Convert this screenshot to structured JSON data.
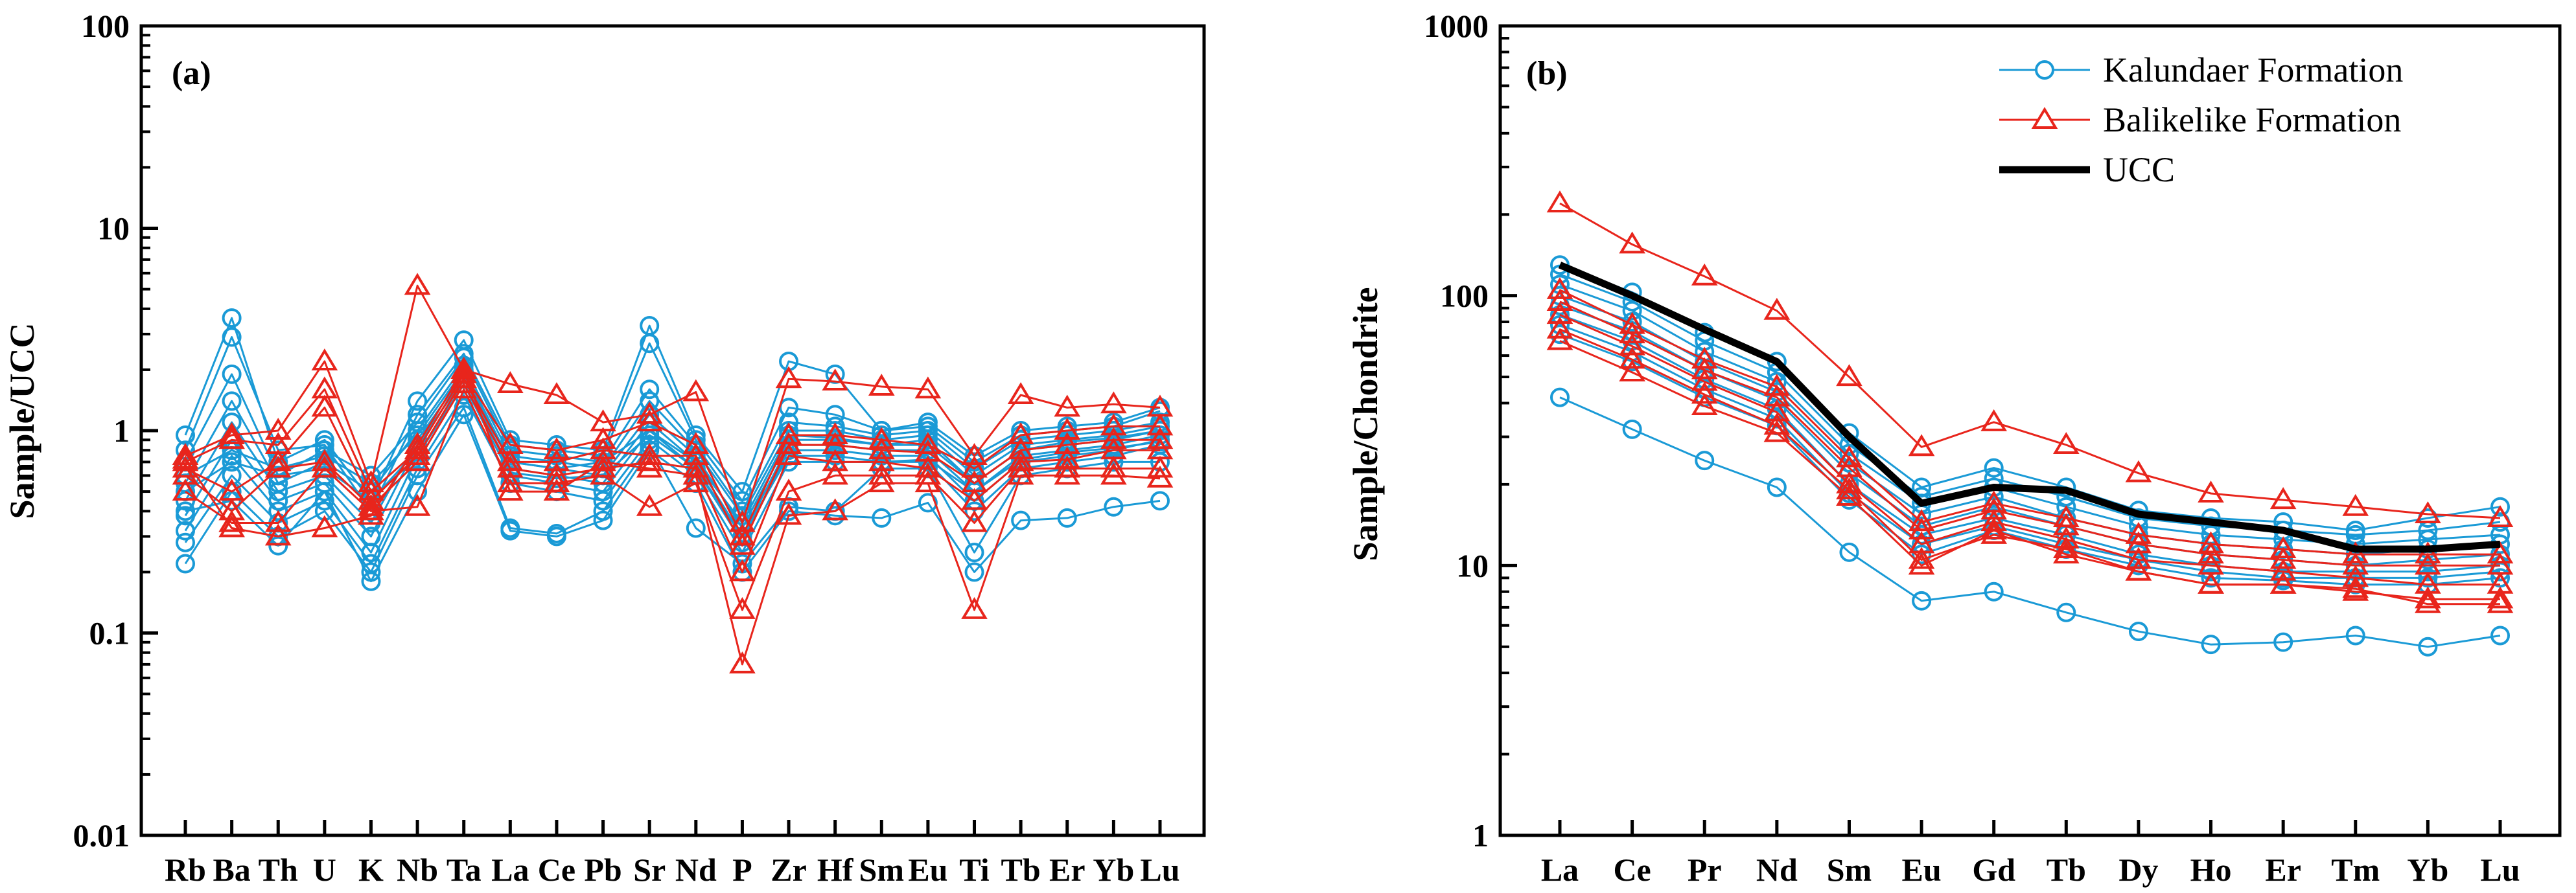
{
  "colors": {
    "kalundaer": "#1a9ad6",
    "balikelike": "#e8251c",
    "ucc": "#000000"
  },
  "chart_data": [
    {
      "type": "line",
      "panel_label": "(a)",
      "ylabel": "Sample/UCC",
      "xlabel": "",
      "yscale": "log",
      "ylim": [
        0.01,
        100
      ],
      "yticks": [
        "0.01",
        "0.1",
        "1",
        "10",
        "100"
      ],
      "categories": [
        "Rb",
        "Ba",
        "Th",
        "U",
        "K",
        "Nb",
        "Ta",
        "La",
        "Ce",
        "Pb",
        "Sr",
        "Nd",
        "P",
        "Zr",
        "Hf",
        "Sm",
        "Eu",
        "Ti",
        "Tb",
        "Er",
        "Yb",
        "Lu"
      ],
      "series": [
        {
          "name": "Kalundaer Formation",
          "values": [
            0.95,
            3.6,
            0.7,
            0.9,
            0.45,
            1.4,
            2.8,
            0.9,
            0.85,
            0.8,
            3.3,
            0.95,
            0.5,
            2.2,
            1.9,
            1.0,
            1.1,
            0.75,
            1.0,
            1.05,
            1.1,
            1.3
          ]
        },
        {
          "name": "Kalundaer Formation",
          "values": [
            0.8,
            2.9,
            0.8,
            0.85,
            0.4,
            1.2,
            2.4,
            0.85,
            0.8,
            0.75,
            2.7,
            0.9,
            0.45,
            1.3,
            1.2,
            1.0,
            1.05,
            0.7,
            0.95,
            1.0,
            1.05,
            1.25
          ]
        },
        {
          "name": "Kalundaer Formation",
          "values": [
            0.7,
            1.9,
            0.6,
            0.8,
            0.6,
            1.1,
            2.3,
            0.8,
            0.75,
            0.7,
            1.6,
            0.85,
            0.4,
            1.1,
            1.05,
            0.95,
            1.0,
            0.65,
            0.9,
            0.95,
            1.0,
            1.1
          ]
        },
        {
          "name": "Kalundaer Formation",
          "values": [
            0.55,
            1.4,
            0.55,
            0.7,
            0.5,
            1.0,
            2.1,
            0.75,
            0.7,
            0.65,
            1.4,
            0.8,
            0.38,
            1.0,
            1.0,
            0.9,
            0.95,
            0.6,
            0.85,
            0.9,
            0.95,
            1.05
          ]
        },
        {
          "name": "Kalundaer Formation",
          "values": [
            0.45,
            1.1,
            0.5,
            0.6,
            0.35,
            0.9,
            1.9,
            0.7,
            0.65,
            0.6,
            1.2,
            0.75,
            0.33,
            0.9,
            0.9,
            0.85,
            0.85,
            0.55,
            0.8,
            0.85,
            0.9,
            1.0
          ]
        },
        {
          "name": "Kalundaer Formation",
          "values": [
            0.38,
            0.9,
            0.45,
            0.55,
            0.3,
            0.85,
            1.8,
            0.65,
            0.6,
            0.55,
            1.1,
            0.7,
            0.3,
            0.85,
            0.85,
            0.8,
            0.8,
            0.5,
            0.75,
            0.8,
            0.85,
            0.95
          ]
        },
        {
          "name": "Kalundaer Formation",
          "values": [
            0.32,
            0.75,
            0.4,
            0.5,
            0.25,
            0.75,
            1.7,
            0.6,
            0.55,
            0.5,
            1.0,
            0.65,
            0.28,
            0.8,
            0.8,
            0.75,
            0.75,
            0.45,
            0.7,
            0.75,
            0.8,
            0.9
          ]
        },
        {
          "name": "Kalundaer Formation",
          "values": [
            0.28,
            0.6,
            0.35,
            0.45,
            0.22,
            0.65,
            1.5,
            0.55,
            0.5,
            0.45,
            0.9,
            0.6,
            0.25,
            0.7,
            0.7,
            0.7,
            0.7,
            0.4,
            0.65,
            0.7,
            0.75,
            0.85
          ]
        },
        {
          "name": "Kalundaer Formation",
          "values": [
            0.22,
            0.5,
            0.3,
            0.4,
            0.2,
            0.6,
            1.3,
            0.33,
            0.31,
            0.4,
            0.85,
            0.33,
            0.22,
            0.42,
            0.4,
            0.65,
            0.65,
            0.25,
            0.6,
            0.65,
            0.7,
            0.7
          ]
        },
        {
          "name": "Kalundaer Formation",
          "values": [
            0.4,
            0.45,
            0.27,
            0.5,
            0.18,
            0.5,
            1.2,
            0.32,
            0.3,
            0.36,
            0.8,
            0.55,
            0.2,
            0.4,
            0.38,
            0.37,
            0.44,
            0.2,
            0.36,
            0.37,
            0.42,
            0.45
          ]
        },
        {
          "name": "Kalundaer Formation",
          "values": [
            0.6,
            0.8,
            0.65,
            0.75,
            0.55,
            0.95,
            2.0,
            0.7,
            0.65,
            0.7,
            1.0,
            0.7,
            0.35,
            0.95,
            0.92,
            0.85,
            0.9,
            0.55,
            0.8,
            0.88,
            0.92,
            1.0
          ]
        },
        {
          "name": "Kalundaer Formation",
          "values": [
            0.5,
            0.7,
            0.6,
            0.65,
            0.45,
            0.8,
            1.9,
            0.62,
            0.58,
            0.6,
            0.95,
            0.65,
            0.3,
            0.75,
            0.75,
            0.7,
            0.72,
            0.5,
            0.72,
            0.78,
            0.82,
            0.88
          ]
        },
        {
          "name": "Balikelike Formation",
          "values": [
            0.75,
            0.95,
            1.0,
            2.2,
            0.55,
            5.2,
            2.0,
            1.7,
            1.5,
            1.1,
            1.2,
            1.55,
            0.35,
            1.8,
            1.75,
            1.65,
            1.6,
            0.75,
            1.5,
            1.3,
            1.35,
            1.3
          ]
        },
        {
          "name": "Balikelike Formation",
          "values": [
            0.7,
            0.9,
            0.85,
            1.6,
            0.5,
            0.8,
            1.9,
            0.85,
            0.8,
            0.9,
            1.1,
            0.85,
            0.3,
            0.95,
            0.95,
            0.9,
            0.85,
            0.65,
            0.95,
            1.0,
            1.05,
            1.05
          ]
        },
        {
          "name": "Balikelike Formation",
          "values": [
            0.65,
            0.5,
            0.7,
            1.3,
            0.45,
            0.75,
            1.8,
            0.7,
            0.7,
            0.8,
            0.75,
            0.75,
            0.27,
            0.85,
            0.85,
            0.8,
            0.78,
            0.55,
            0.8,
            0.85,
            0.9,
            0.9
          ]
        },
        {
          "name": "Balikelike Formation",
          "values": [
            0.6,
            0.4,
            0.65,
            0.7,
            0.42,
            0.7,
            1.7,
            0.65,
            0.6,
            0.65,
            0.7,
            0.65,
            0.2,
            0.75,
            0.7,
            0.7,
            0.65,
            0.45,
            0.7,
            0.72,
            0.8,
            0.8
          ]
        },
        {
          "name": "Balikelike Formation",
          "values": [
            0.5,
            0.35,
            0.35,
            0.65,
            0.4,
            0.42,
            1.6,
            0.55,
            0.55,
            0.6,
            0.42,
            0.55,
            0.13,
            0.5,
            0.6,
            0.6,
            0.6,
            0.35,
            0.65,
            0.65,
            0.65,
            0.65
          ]
        },
        {
          "name": "Balikelike Formation",
          "values": [
            0.72,
            0.33,
            0.3,
            0.33,
            0.38,
            0.85,
            2.0,
            0.5,
            0.5,
            0.7,
            0.65,
            0.6,
            0.07,
            0.38,
            0.4,
            0.55,
            0.55,
            0.13,
            0.6,
            0.6,
            0.6,
            0.58
          ]
        }
      ]
    },
    {
      "type": "line",
      "panel_label": "(b)",
      "ylabel": "Sample/Chondrite",
      "xlabel": "",
      "yscale": "log",
      "ylim": [
        1,
        1000
      ],
      "yticks": [
        "1",
        "10",
        "100",
        "1000"
      ],
      "categories": [
        "La",
        "Ce",
        "Pr",
        "Nd",
        "Sm",
        "Eu",
        "Gd",
        "Tb",
        "Dy",
        "Ho",
        "Er",
        "Tm",
        "Yb",
        "Lu"
      ],
      "legend": {
        "position": "top-right",
        "entries": [
          "Kalundaer Formation",
          "Balikelike Formation",
          "UCC"
        ]
      },
      "series": [
        {
          "name": "Kalundaer Formation",
          "values": [
            130,
            103,
            73,
            57,
            31,
            19.5,
            23,
            19.5,
            16,
            15,
            14.5,
            13.5,
            15,
            16.5
          ]
        },
        {
          "name": "Kalundaer Formation",
          "values": [
            120,
            95,
            68,
            52,
            28,
            18,
            21,
            18,
            15,
            14,
            13.5,
            13,
            13.5,
            14.5
          ]
        },
        {
          "name": "Kalundaer Formation",
          "values": [
            110,
            88,
            62,
            48,
            26,
            17,
            19.5,
            16.5,
            14,
            13,
            12.5,
            12,
            12.5,
            13
          ]
        },
        {
          "name": "Kalundaer Formation",
          "values": [
            100,
            80,
            57,
            44,
            24,
            15.5,
            18,
            15,
            13,
            12,
            11.5,
            11,
            11.5,
            12
          ]
        },
        {
          "name": "Kalundaer Formation",
          "values": [
            92,
            74,
            53,
            41,
            22,
            14,
            16.5,
            14,
            12,
            11,
            10.5,
            10,
            10.5,
            11
          ]
        },
        {
          "name": "Kalundaer Formation",
          "values": [
            85,
            68,
            49,
            38,
            20,
            13,
            15,
            13,
            11,
            10,
            9.5,
            9.5,
            9.5,
            10
          ]
        },
        {
          "name": "Kalundaer Formation",
          "values": [
            78,
            62,
            45,
            35,
            18.5,
            12,
            14,
            12,
            10.5,
            9.5,
            9,
            9,
            9,
            9.5
          ]
        },
        {
          "name": "Kalundaer Formation",
          "values": [
            72,
            57,
            42,
            33,
            17.5,
            11,
            13.5,
            11.5,
            10,
            9,
            8.8,
            8.5,
            8.5,
            9
          ]
        },
        {
          "name": "Kalundaer Formation",
          "values": [
            42,
            32,
            24.5,
            19.5,
            11.2,
            7.4,
            8,
            6.7,
            5.7,
            5.1,
            5.2,
            5.5,
            5,
            5.5
          ]
        },
        {
          "name": "Balikelike Formation",
          "values": [
            220,
            155,
            118,
            88,
            50,
            27.5,
            34,
            28,
            22,
            18.5,
            17.5,
            16.5,
            15.5,
            15
          ]
        },
        {
          "name": "Balikelike Formation",
          "values": [
            105,
            78,
            58,
            46,
            25,
            14.5,
            17,
            15,
            13,
            12,
            11.5,
            11,
            11,
            11
          ]
        },
        {
          "name": "Balikelike Formation",
          "values": [
            95,
            72,
            53,
            42,
            23,
            13.5,
            16,
            14,
            12,
            11,
            10.5,
            10,
            10,
            10
          ]
        },
        {
          "name": "Balikelike Formation",
          "values": [
            85,
            65,
            48,
            37,
            20,
            12,
            14.5,
            12.5,
            10.5,
            10,
            9.5,
            9,
            8.5,
            8.5
          ]
        },
        {
          "name": "Balikelike Formation",
          "values": [
            75,
            58,
            43,
            33,
            19,
            10.5,
            13,
            11.5,
            9.5,
            8.5,
            8.5,
            8,
            7.5,
            7.5
          ]
        },
        {
          "name": "Balikelike Formation",
          "values": [
            68,
            52,
            39,
            31,
            18,
            10,
            13.5,
            11,
            9.5,
            8.5,
            8.5,
            8.2,
            7.2,
            7.2
          ]
        },
        {
          "name": "UCC",
          "values": [
            130,
            100,
            75,
            57,
            30,
            17,
            19.5,
            19,
            15.5,
            14.5,
            13.5,
            11.5,
            11.5,
            12
          ]
        }
      ]
    }
  ]
}
